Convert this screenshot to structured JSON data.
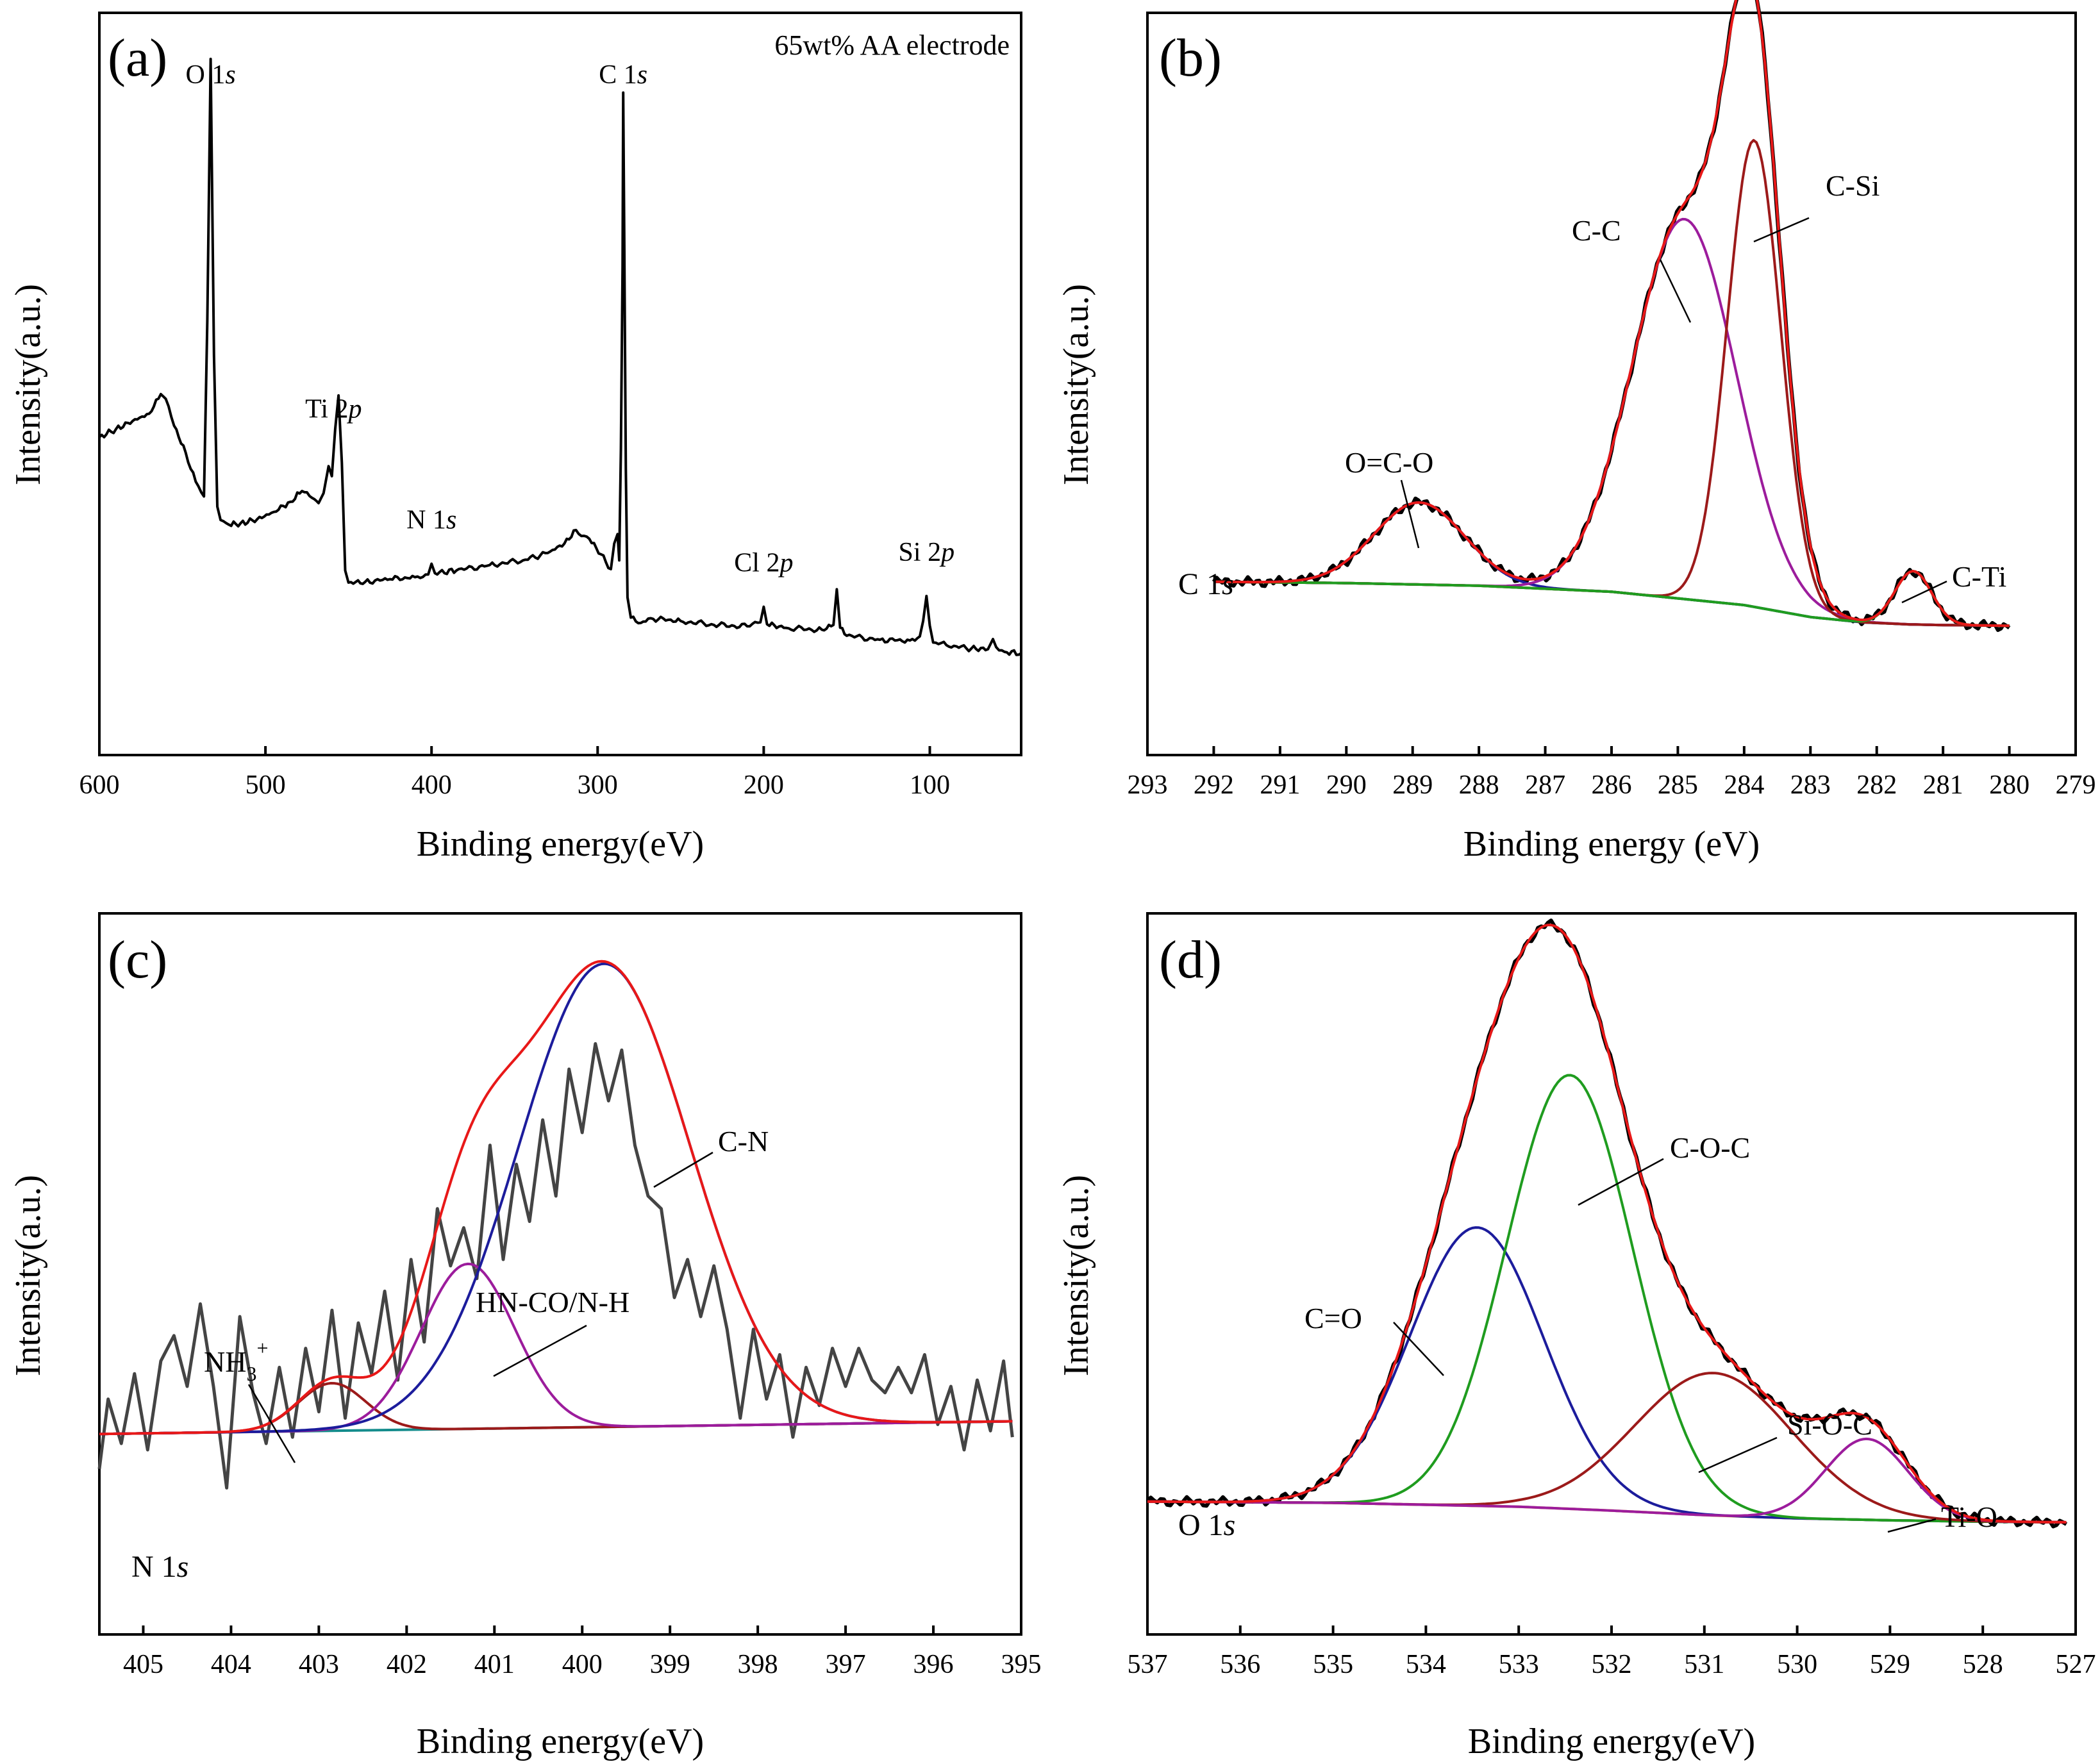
{
  "figure": {
    "panels": [
      "a",
      "b",
      "c",
      "d"
    ]
  },
  "chart_data": [
    {
      "id": "a",
      "type": "line",
      "panel_label": "(a)",
      "sample_label": "65wt% AA electrode",
      "xlabel": "Binding energy(eV)",
      "ylabel": "Intensity(a.u.)",
      "xlim": [
        600,
        45
      ],
      "ylim": [
        0,
        100
      ],
      "x_ticks": [
        600,
        500,
        400,
        300,
        200,
        100
      ],
      "peak_labels": [
        {
          "id": "o1s",
          "element": "O 1",
          "orbital": "s",
          "x": 533
        },
        {
          "id": "ti2p",
          "element": "Ti 2",
          "orbital": "p",
          "x": 459
        },
        {
          "id": "n1s",
          "element": "N 1",
          "orbital": "s",
          "x": 400
        },
        {
          "id": "c1s",
          "element": "C 1",
          "orbital": "s",
          "x": 284.6
        },
        {
          "id": "cl2p",
          "element": "Cl 2",
          "orbital": "p",
          "x": 200
        },
        {
          "id": "si2p",
          "element": "Si 2",
          "orbital": "p",
          "x": 102
        }
      ],
      "series": [
        {
          "name": "Survey",
          "color": "#000000",
          "x": [
            600,
            590,
            580,
            570,
            563,
            560,
            555,
            548,
            542,
            537,
            535,
            533,
            531,
            529,
            527,
            522,
            515,
            505,
            495,
            485,
            478,
            472,
            468,
            465,
            462,
            460,
            458,
            456,
            454,
            452,
            450,
            440,
            425,
            410,
            402,
            400,
            398,
            385,
            365,
            345,
            330,
            320,
            313,
            305,
            298,
            292,
            290,
            288,
            287,
            286,
            285,
            284.6,
            284,
            283,
            282,
            280,
            274,
            268,
            250,
            230,
            210,
            202,
            200,
            198,
            185,
            165,
            158,
            156,
            154,
            150,
            130,
            112,
            106,
            104,
            102,
            100,
            98,
            90,
            75,
            65,
            62,
            60,
            55,
            45
          ],
          "y": [
            39.8,
            41.0,
            42.2,
            43.3,
            46.2,
            45.5,
            41.5,
            37.5,
            33.2,
            31.0,
            57.0,
            96.0,
            52.0,
            29.5,
            27.5,
            26.8,
            27.0,
            27.6,
            28.7,
            30.2,
            31.8,
            30.8,
            30.0,
            31.5,
            35.5,
            34.0,
            41.0,
            46.0,
            36.0,
            20.0,
            18.2,
            18.3,
            18.7,
            19.0,
            19.4,
            21.0,
            19.6,
            20.0,
            20.8,
            21.5,
            22.6,
            24.0,
            26.0,
            24.7,
            22.4,
            20.2,
            24.0,
            25.4,
            21.5,
            38.0,
            65.0,
            91.0,
            70.0,
            35.0,
            16.0,
            13.0,
            12.2,
            12.9,
            12.5,
            11.9,
            11.7,
            12.3,
            14.6,
            12.0,
            11.4,
            11.2,
            11.9,
            17.2,
            11.5,
            10.3,
            9.7,
            9.6,
            10.2,
            12.5,
            16.2,
            11.8,
            9.3,
            8.9,
            8.4,
            8.3,
            9.8,
            8.6,
            7.9,
            7.7
          ]
        }
      ]
    },
    {
      "id": "b",
      "type": "line",
      "panel_label": "(b)",
      "corner_label": {
        "element": "C 1",
        "orbital": "s"
      },
      "xlabel": "Binding energy (eV)",
      "ylabel": "Intensity(a.u.)",
      "xlim": [
        293,
        279
      ],
      "ylim": [
        0,
        100
      ],
      "x_ticks": [
        293,
        292,
        291,
        290,
        289,
        288,
        287,
        286,
        285,
        284,
        283,
        282,
        281,
        280,
        279
      ],
      "background": {
        "name": "Background",
        "color": "#3d9b22",
        "x": [
          292,
          290,
          288,
          286,
          284,
          283,
          282.2,
          281.5,
          281,
          280
        ],
        "y": [
          18.5,
          18.3,
          17.9,
          17.0,
          15.0,
          13.2,
          12.4,
          12.1,
          12.0,
          11.9
        ]
      },
      "components": [
        {
          "name": "O=C-O",
          "label": "O=C-O",
          "color": "#1c1c9c",
          "center": 288.9,
          "height": 12.3,
          "fwhm": 1.6
        },
        {
          "name": "C-C",
          "label": "C-C",
          "color": "#9c1c9c",
          "center": 284.9,
          "height": 57.0,
          "fwhm": 1.85
        },
        {
          "name": "C-Si",
          "label": "C-Si",
          "color": "#9c1a1a",
          "center": 283.85,
          "height": 70.0,
          "fwhm": 0.95
        },
        {
          "name": "C-Ti",
          "label": "C-Ti",
          "color": "#1f9c1f",
          "center": 281.45,
          "height": 8.0,
          "fwhm": 0.65
        }
      ],
      "envelope": {
        "name": "Fit",
        "color": "#e81818"
      },
      "raw": {
        "name": "Raw data",
        "color": "#000000"
      }
    },
    {
      "id": "c",
      "type": "line",
      "panel_label": "(c)",
      "corner_label": {
        "element": "N 1",
        "orbital": "s"
      },
      "xlabel": "Binding energy(eV)",
      "ylabel": "Intensity(a.u.)",
      "xlim": [
        405.5,
        395
      ],
      "ylim": [
        0,
        100
      ],
      "x_ticks": [
        405,
        404,
        403,
        402,
        401,
        400,
        399,
        398,
        397,
        396,
        395
      ],
      "background": {
        "name": "Background",
        "color": "#148c8c",
        "x": [
          405.5,
          395.1
        ],
        "y": [
          22.5,
          24.5
        ]
      },
      "components": [
        {
          "name": "NH3+",
          "label": "NH3+",
          "color": "#9c1a1a",
          "center": 402.85,
          "height": 7.5,
          "fwhm": 0.9
        },
        {
          "name": "HN-CO/N-H",
          "label": "HN-CO/N-H",
          "color": "#9c1c9c",
          "center": 401.3,
          "height": 26.0,
          "fwhm": 1.25
        },
        {
          "name": "C-N",
          "label": "C-N",
          "color": "#1c1c9c",
          "center": 399.75,
          "height": 73.0,
          "fwhm": 2.3
        }
      ],
      "envelope": {
        "name": "Fit",
        "color": "#e81818"
      },
      "raw": {
        "name": "Raw data",
        "color": "#444444",
        "x": [
          405.5,
          405.4,
          405.25,
          405.1,
          404.95,
          404.8,
          404.65,
          404.5,
          404.35,
          404.2,
          404.05,
          403.9,
          403.75,
          403.6,
          403.45,
          403.3,
          403.15,
          403.0,
          402.85,
          402.7,
          402.55,
          402.4,
          402.25,
          402.1,
          401.95,
          401.8,
          401.65,
          401.5,
          401.35,
          401.2,
          401.05,
          400.9,
          400.75,
          400.6,
          400.45,
          400.3,
          400.15,
          400.0,
          399.85,
          399.7,
          399.55,
          399.4,
          399.25,
          399.1,
          398.95,
          398.8,
          398.65,
          398.5,
          398.35,
          398.2,
          398.05,
          397.9,
          397.75,
          397.6,
          397.45,
          397.3,
          397.15,
          397.0,
          396.85,
          396.7,
          396.55,
          396.4,
          396.25,
          396.1,
          395.95,
          395.8,
          395.65,
          395.5,
          395.35,
          395.2,
          395.1
        ],
        "y": [
          17.0,
          28.0,
          21.0,
          32.0,
          20.0,
          34.0,
          38.0,
          30.0,
          43.0,
          30.0,
          14.0,
          41.0,
          29.0,
          21.0,
          33.0,
          22.0,
          36.0,
          26.0,
          42.0,
          25.0,
          40.0,
          32.0,
          45.0,
          31.0,
          50.0,
          37.0,
          58.0,
          49.0,
          55.0,
          47.0,
          68.0,
          50.0,
          65.0,
          56.0,
          72.0,
          60.0,
          80.0,
          70.0,
          84.0,
          75.0,
          83.0,
          68.0,
          60.0,
          58.0,
          44.0,
          50.0,
          41.0,
          49.0,
          39.0,
          25.0,
          39.0,
          28.0,
          35.0,
          22.0,
          33.0,
          27.0,
          36.0,
          30.0,
          36.0,
          31.0,
          29.0,
          33.0,
          29.0,
          35.0,
          24.0,
          30.0,
          20.0,
          31.0,
          23.0,
          34.0,
          22.0
        ]
      }
    },
    {
      "id": "d",
      "type": "line",
      "panel_label": "(d)",
      "corner_label": {
        "element": "O 1",
        "orbital": "s"
      },
      "xlabel": "Binding energy(eV)",
      "ylabel": "Intensity(a.u.)",
      "xlim": [
        537,
        527
      ],
      "ylim": [
        0,
        100
      ],
      "x_ticks": [
        537,
        536,
        535,
        534,
        533,
        532,
        531,
        530,
        529,
        528,
        527
      ],
      "background": {
        "name": "Background",
        "color": "#e8a018",
        "x": [
          537,
          535,
          533,
          532,
          531,
          530,
          529,
          528,
          527.1
        ],
        "y": [
          13.6,
          13.4,
          12.8,
          12.2,
          11.5,
          11.0,
          10.7,
          10.5,
          10.4
        ]
      },
      "components": [
        {
          "name": "C=O",
          "label": "C=O",
          "color": "#1c1c9c",
          "center": 533.45,
          "height": 43.0,
          "fwhm": 1.7
        },
        {
          "name": "C-O-C",
          "label": "C-O-C",
          "color": "#1f9c1f",
          "center": 532.45,
          "height": 67.0,
          "fwhm": 1.6
        },
        {
          "name": "Si-O-C",
          "label": "Si-O-C",
          "color": "#9c1a1a",
          "center": 530.9,
          "height": 22.0,
          "fwhm": 2.0
        },
        {
          "name": "Ti-O",
          "label": "Ti-O",
          "color": "#9c1c9c",
          "center": 529.25,
          "height": 12.5,
          "fwhm": 1.05
        }
      ],
      "envelope": {
        "name": "Fit",
        "color": "#e81818"
      },
      "raw": {
        "name": "Raw data",
        "color": "#000000"
      }
    }
  ]
}
